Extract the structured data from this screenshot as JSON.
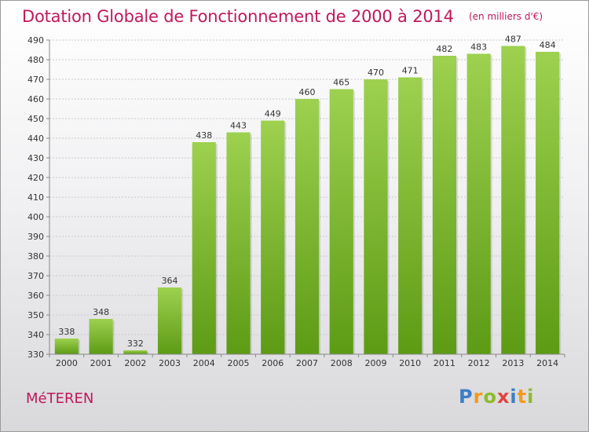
{
  "header": {
    "title": "Dotation Globale de Fonctionnement de 2000 à 2014",
    "unit": "(en milliers d'€)"
  },
  "footer": {
    "commune": "MéTEREN",
    "logo": "Proxiti"
  },
  "colors": {
    "title": "#c0185b",
    "bar_top": "#9dd14f",
    "bar_bottom": "#5d9b15",
    "grid": "#c9c9c9",
    "axis": "#888888"
  },
  "chart_data": {
    "type": "bar",
    "title": "Dotation Globale de Fonctionnement de 2000 à 2014",
    "subtitle": "(en milliers d'€)",
    "categories": [
      "2000",
      "2001",
      "2002",
      "2003",
      "2004",
      "2005",
      "2006",
      "2007",
      "2008",
      "2009",
      "2010",
      "2011",
      "2012",
      "2013",
      "2014"
    ],
    "values": [
      338,
      348,
      332,
      364,
      438,
      443,
      449,
      460,
      465,
      470,
      471,
      482,
      483,
      487,
      484
    ],
    "ylim": [
      330,
      490
    ],
    "yticks": [
      330,
      340,
      350,
      360,
      370,
      380,
      390,
      400,
      410,
      420,
      430,
      440,
      450,
      460,
      470,
      480,
      490
    ],
    "grid": true,
    "data_labels": true,
    "legend": "none"
  }
}
